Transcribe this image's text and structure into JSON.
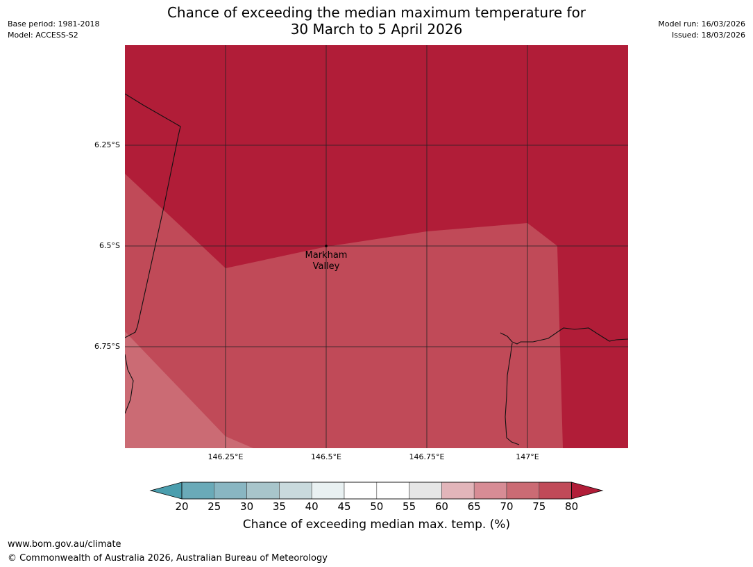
{
  "header": {
    "title_line1": "Chance of exceeding the median maximum temperature for",
    "title_line2": "30 March to 5 April 2026",
    "base_period": "Base period: 1981-2018",
    "model": "Model: ACCESS-S2",
    "model_run": "Model run: 16/03/2026",
    "issued": "Issued: 18/03/2026"
  },
  "map": {
    "latitude_labels": [
      "6.25°S",
      "6.5°S",
      "6.75°S"
    ],
    "longitude_labels": [
      "146.25°E",
      "146.5°E",
      "146.75°E",
      "147°E"
    ],
    "place_label_line1": "Markham",
    "place_label_line2": "Valley",
    "colors": {
      "above_80": "#b11d38",
      "band_75_80": "#c04a58",
      "band_70_75": "#cb6b74"
    }
  },
  "colorbar": {
    "title": "Chance of exceeding median max. temp. (%)",
    "ticks": [
      "20",
      "25",
      "30",
      "35",
      "40",
      "45",
      "50",
      "55",
      "60",
      "65",
      "70",
      "75",
      "80"
    ],
    "colors": [
      "#4a9eae",
      "#6aaab8",
      "#89b6c2",
      "#a8c5cb",
      "#c9dadd",
      "#e9f1f2",
      "#ffffff",
      "#ffffff",
      "#e6e6e6",
      "#e2b5ba",
      "#d78c95",
      "#cb6b74",
      "#c04a58",
      "#b11d38"
    ]
  },
  "footer": {
    "website": "www.bom.gov.au/climate",
    "copyright": "© Commonwealth of Australia 2026, Australian Bureau of Meteorology"
  }
}
